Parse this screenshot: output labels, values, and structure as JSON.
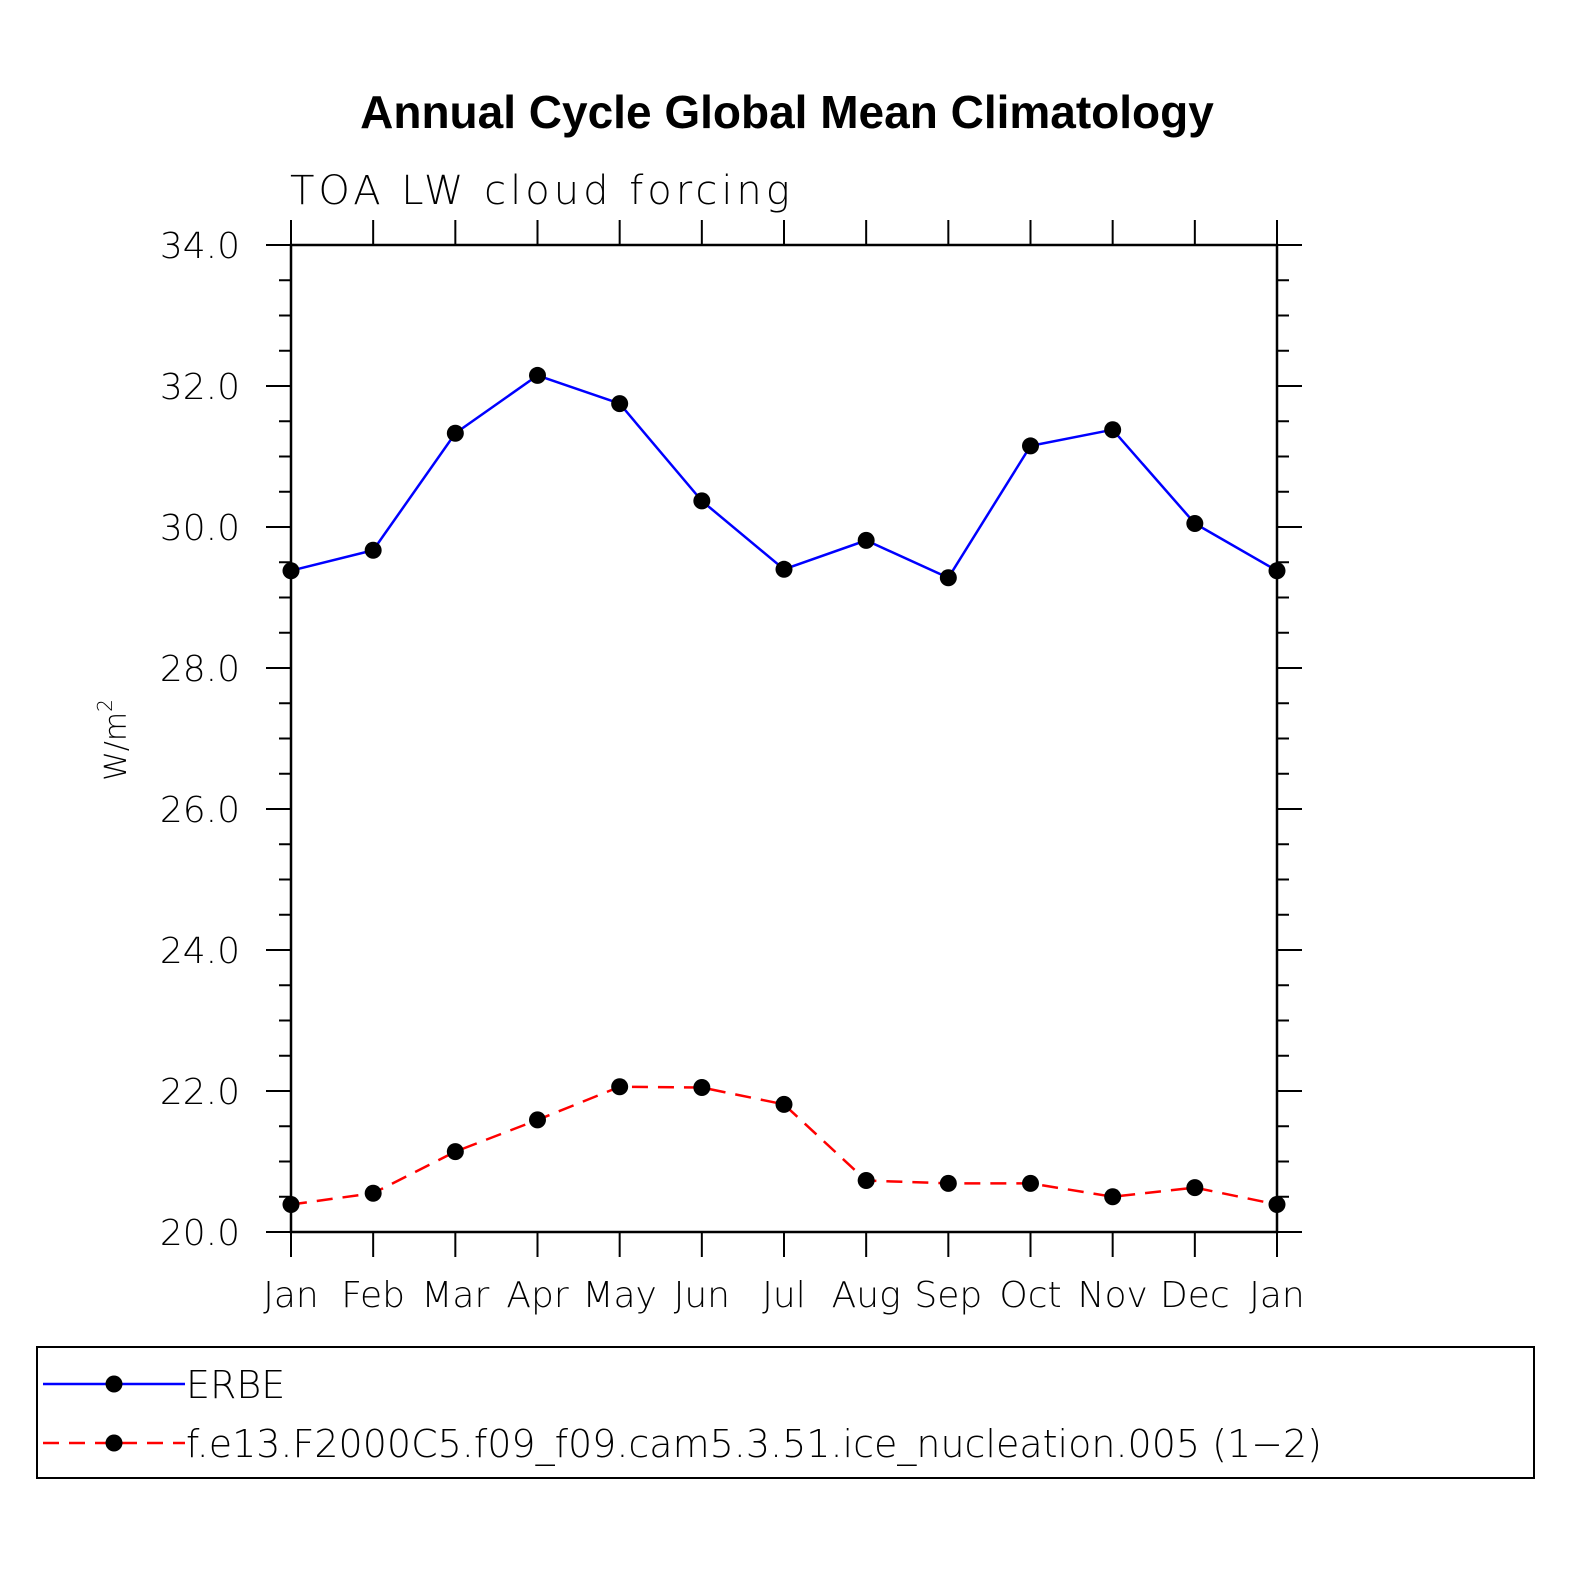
{
  "chart_data": {
    "type": "line",
    "title": "Annual Cycle Global Mean Climatology",
    "subtitle": "TOA LW cloud forcing",
    "ylabel": "W/m",
    "ylabel_superscript": "2",
    "ylim": [
      20.0,
      34.0
    ],
    "yticks": [
      "20.0",
      "22.0",
      "24.0",
      "26.0",
      "28.0",
      "30.0",
      "32.0",
      "34.0"
    ],
    "categories": [
      "Jan",
      "Feb",
      "Mar",
      "Apr",
      "May",
      "Jun",
      "Jul",
      "Aug",
      "Sep",
      "Oct",
      "Nov",
      "Dec",
      "Jan"
    ],
    "grid": false,
    "legend_position": "bottom",
    "series": [
      {
        "name": "ERBE",
        "color": "#0000ff",
        "dash": "solid",
        "marker": "filled-circle",
        "values": [
          29.38,
          29.67,
          31.33,
          32.15,
          31.75,
          30.37,
          29.4,
          29.81,
          29.28,
          31.15,
          31.38,
          30.05,
          29.38
        ]
      },
      {
        "name": "f.e13.F2000C5.f09_f09.cam5.3.51.ice_nucleation.005 (1−2)",
        "color": "#ff0000",
        "dash": "dashed",
        "marker": "filled-circle",
        "values": [
          20.39,
          20.55,
          21.14,
          21.59,
          22.06,
          22.05,
          21.81,
          20.73,
          20.69,
          20.69,
          20.5,
          20.63,
          20.39
        ]
      }
    ]
  }
}
